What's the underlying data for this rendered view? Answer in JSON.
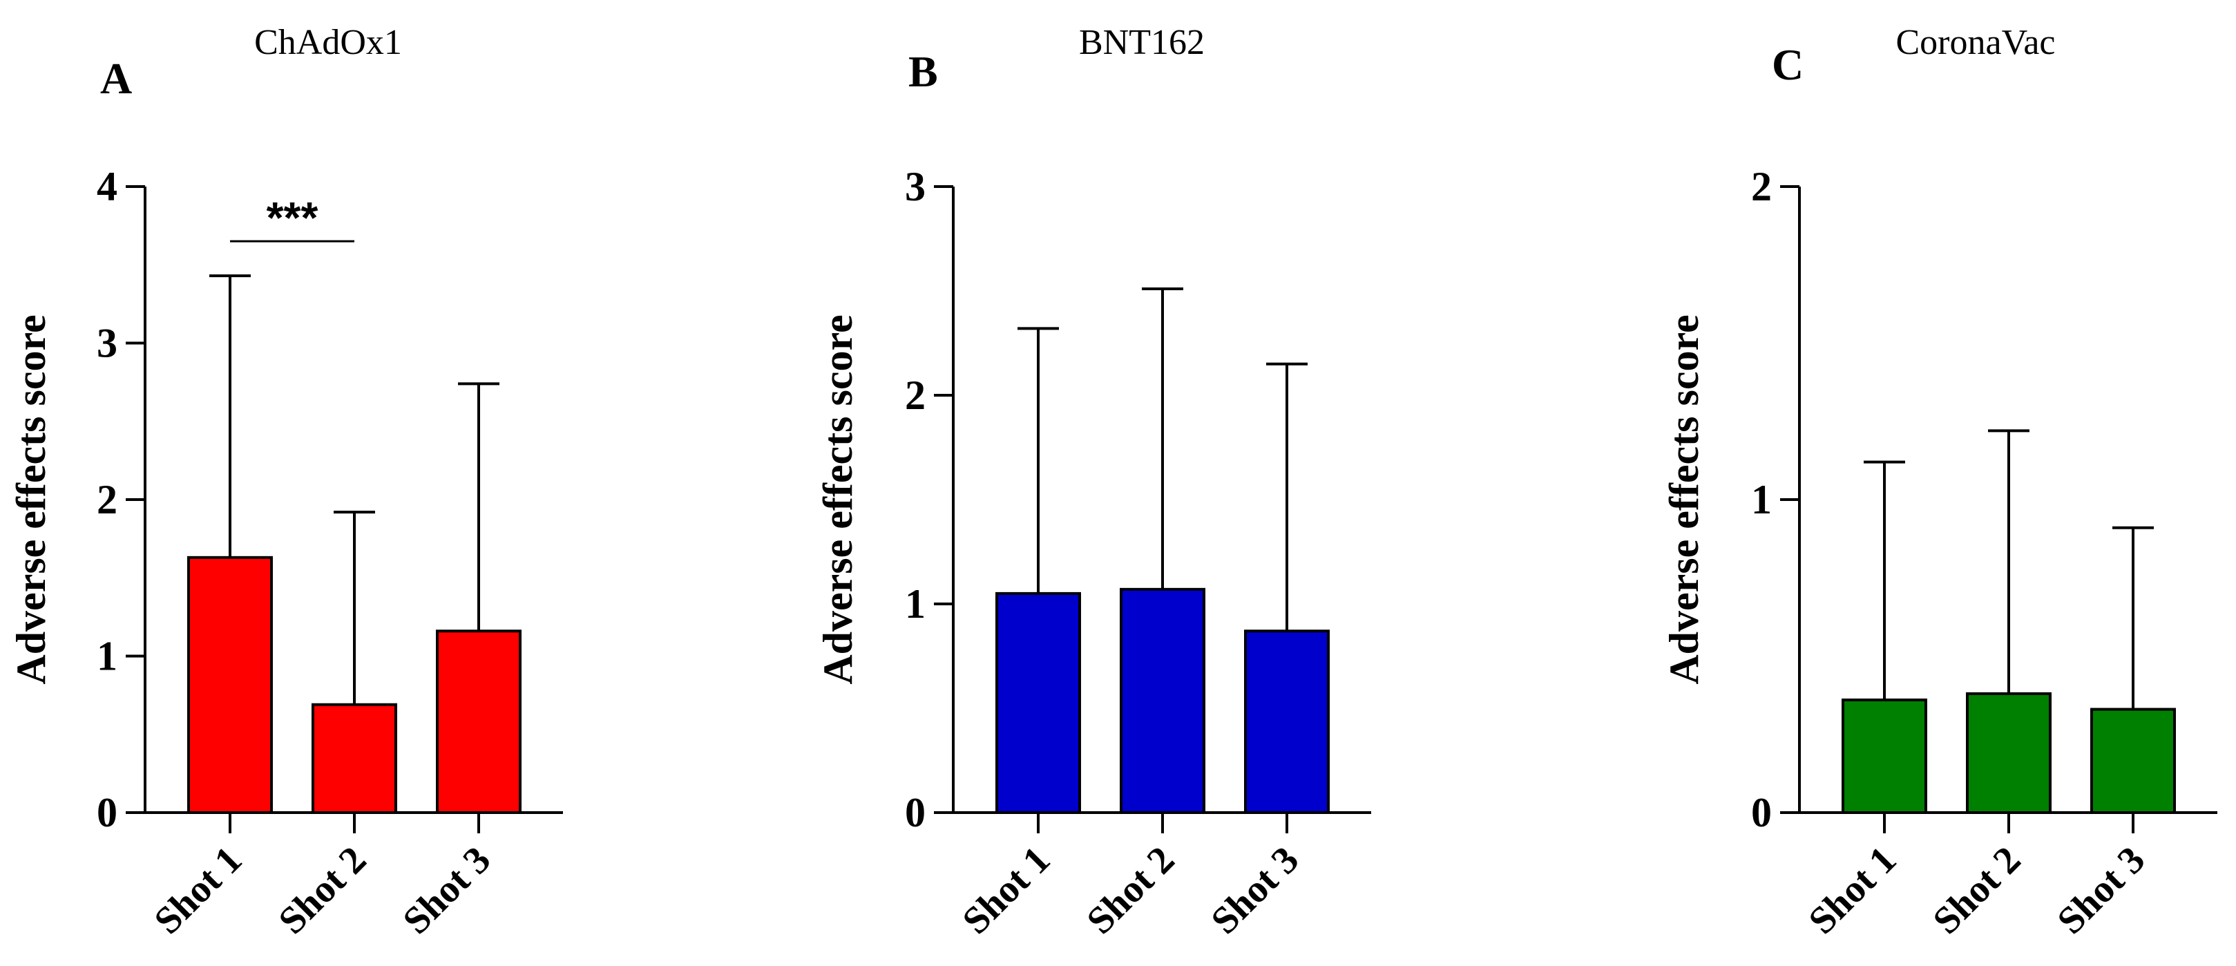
{
  "chart_data": [
    {
      "type": "bar",
      "panel": "A",
      "title": "ChAdOx1",
      "ylabel": "Adverse effects score",
      "xlabel": "",
      "categories": [
        "Shot 1",
        "Shot 2",
        "Shot 3"
      ],
      "values": [
        1.63,
        0.69,
        1.16
      ],
      "error_upper": [
        3.43,
        1.92,
        2.74
      ],
      "ylim": [
        0,
        4
      ],
      "yticks": [
        0,
        1,
        2,
        3,
        4
      ],
      "color": "#ff0000",
      "significance": [
        {
          "from": "Shot 1",
          "to": "Shot 2",
          "label": "***"
        }
      ]
    },
    {
      "type": "bar",
      "panel": "B",
      "title": "BNT162",
      "ylabel": "Adverse effects score",
      "xlabel": "",
      "categories": [
        "Shot 1",
        "Shot 2",
        "Shot 3"
      ],
      "values": [
        1.05,
        1.07,
        0.87
      ],
      "error_upper": [
        2.32,
        2.51,
        2.15
      ],
      "ylim": [
        0,
        3
      ],
      "yticks": [
        0,
        1,
        2,
        3
      ],
      "color": "#0000cc",
      "significance": []
    },
    {
      "type": "bar",
      "panel": "C",
      "title": "CoronaVac",
      "ylabel": "Adverse effects score",
      "xlabel": "",
      "categories": [
        "Shot 1",
        "Shot 2",
        "Shot 3"
      ],
      "values": [
        0.36,
        0.38,
        0.33
      ],
      "error_upper": [
        1.12,
        1.22,
        0.91
      ],
      "ylim": [
        0,
        2
      ],
      "yticks": [
        0,
        1,
        2
      ],
      "color": "#008000",
      "significance": []
    }
  ]
}
